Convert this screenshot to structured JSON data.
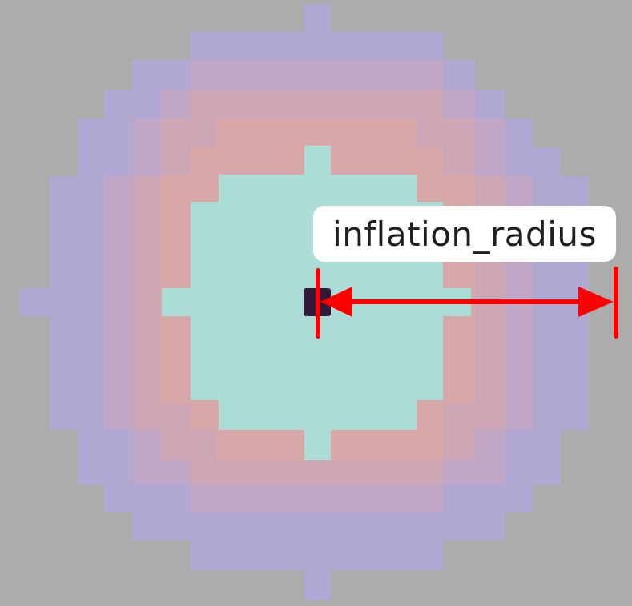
{
  "diagram": {
    "label": "inflation_radius",
    "colors": {
      "background": "#acacac",
      "outer_ring": "#b1a8d4",
      "mid_ring_inner": "#cea7b8",
      "inner_ring": "#d8a8a8",
      "inscribed_zone": "#acdcd6",
      "obstacle": "#2f1a3a",
      "marker": "#ff0000",
      "label_bg": "#ffffff",
      "label_text": "#1e1e1e"
    }
  }
}
